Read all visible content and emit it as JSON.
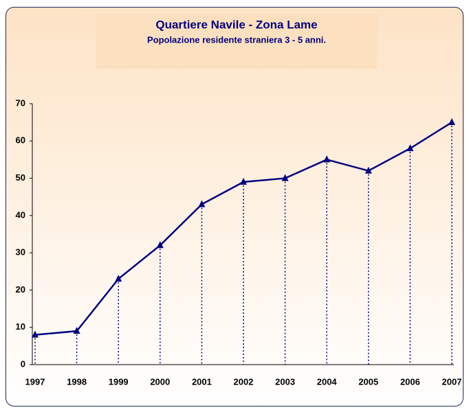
{
  "chart_data": {
    "type": "line",
    "title": "Quartiere Navile - Zona Lame",
    "subtitle": "Popolazione residente straniera 3 - 5 anni.",
    "categories": [
      "1997",
      "1998",
      "1999",
      "2000",
      "2001",
      "2002",
      "2003",
      "2004",
      "2005",
      "2006",
      "2007"
    ],
    "values": [
      8,
      9,
      23,
      32,
      43,
      49,
      50,
      55,
      52,
      58,
      65
    ],
    "color": "#000080",
    "ylim": [
      0,
      70
    ],
    "yticks": [
      0,
      10,
      20,
      30,
      40,
      50,
      60,
      70
    ],
    "grid": false,
    "drop_lines": true
  }
}
